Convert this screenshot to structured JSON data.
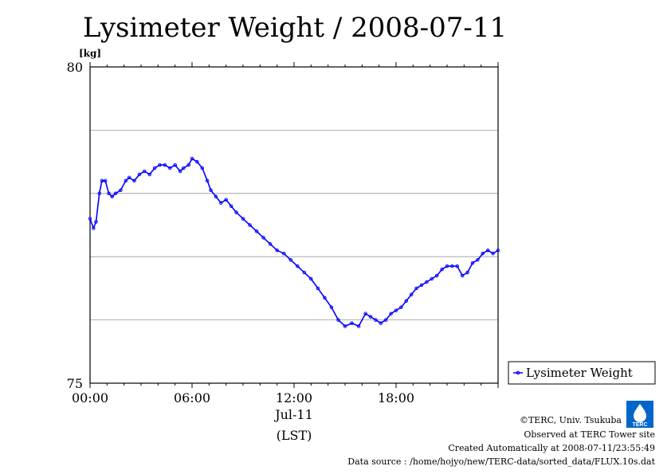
{
  "chart_data": {
    "type": "line",
    "title": "Lysimeter Weight / 2008-07-11",
    "unit_label": "[kg]",
    "x_axis": {
      "ticks": [
        "00:00",
        "06:00",
        "12:00",
        "18:00"
      ],
      "date_label": "Jul-11",
      "zone_label": "(LST)",
      "range_hours": [
        0,
        24
      ]
    },
    "y_axis": {
      "range": [
        75,
        80
      ],
      "tick_labels": [
        "80",
        "75"
      ],
      "gridlines": [
        76,
        77,
        78,
        79
      ]
    },
    "grid": true,
    "legend_position": "right",
    "series": [
      {
        "name": "Lysimeter Weight",
        "color": "#0000ff",
        "x_hours": [
          0.0,
          0.2,
          0.35,
          0.55,
          0.7,
          0.9,
          1.1,
          1.3,
          1.5,
          1.8,
          2.1,
          2.3,
          2.6,
          2.9,
          3.2,
          3.5,
          3.8,
          4.1,
          4.4,
          4.7,
          5.0,
          5.3,
          5.5,
          5.8,
          6.0,
          6.3,
          6.6,
          6.9,
          7.1,
          7.4,
          7.7,
          8.0,
          8.3,
          8.6,
          9.0,
          9.4,
          9.8,
          10.2,
          10.6,
          11.0,
          11.4,
          11.8,
          12.2,
          12.6,
          13.0,
          13.4,
          13.8,
          14.2,
          14.6,
          15.0,
          15.4,
          15.8,
          16.2,
          16.5,
          16.8,
          17.1,
          17.4,
          17.7,
          18.0,
          18.3,
          18.6,
          18.9,
          19.2,
          19.5,
          19.8,
          20.1,
          20.4,
          20.7,
          21.0,
          21.3,
          21.6,
          21.9,
          22.2,
          22.5,
          22.8,
          23.1,
          23.4,
          23.7,
          24.0
        ],
        "values": [
          77.6,
          77.45,
          77.55,
          78.0,
          78.2,
          78.2,
          78.0,
          77.95,
          78.0,
          78.05,
          78.2,
          78.25,
          78.2,
          78.3,
          78.35,
          78.3,
          78.4,
          78.45,
          78.45,
          78.4,
          78.45,
          78.35,
          78.4,
          78.45,
          78.55,
          78.5,
          78.4,
          78.2,
          78.05,
          77.95,
          77.85,
          77.9,
          77.8,
          77.7,
          77.6,
          77.5,
          77.4,
          77.3,
          77.2,
          77.1,
          77.05,
          76.95,
          76.85,
          76.75,
          76.65,
          76.5,
          76.35,
          76.2,
          76.0,
          75.9,
          75.95,
          75.9,
          76.1,
          76.05,
          76.0,
          75.95,
          76.0,
          76.1,
          76.15,
          76.2,
          76.3,
          76.4,
          76.5,
          76.55,
          76.6,
          76.65,
          76.7,
          76.8,
          76.85,
          76.85,
          76.85,
          76.7,
          76.75,
          76.9,
          76.95,
          77.05,
          77.1,
          77.05,
          77.1
        ]
      }
    ]
  },
  "footer": {
    "copyright": "©TERC, Univ. Tsukuba",
    "observed": "Observed at TERC Tower site",
    "created": "Created Automatically at 2008-07-11/23:55:49",
    "source": "Data source : /home/hojyo/new/TERC-data/sorted_data/FLUX.10s.dat",
    "logo_text": "TERC",
    "logo_color": "#0066cc"
  }
}
